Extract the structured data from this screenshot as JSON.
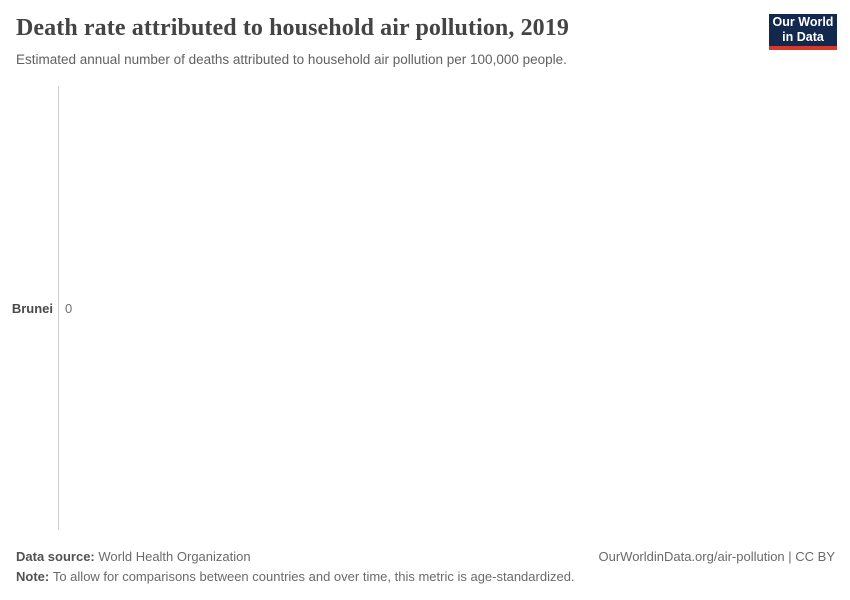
{
  "header": {
    "title": "Death rate attributed to household air pollution, 2019",
    "subtitle": "Estimated annual number of deaths attributed to household air pollution per 100,000 people.",
    "logo": {
      "line1": "Our World",
      "line2": "in Data",
      "background_color": "#12284c",
      "accent_color": "#dc362b"
    }
  },
  "chart_data": {
    "type": "bar",
    "orientation": "horizontal",
    "title": "Death rate attributed to household air pollution, 2019",
    "categories": [
      "Brunei"
    ],
    "values": [
      0
    ],
    "value_labels": [
      "0"
    ],
    "xlabel": "",
    "ylabel": "",
    "xlim": [
      0,
      0
    ],
    "grid": false,
    "legend": false,
    "axis_color": "#d0d0d0"
  },
  "footer": {
    "data_source_label": "Data source:",
    "data_source_text": "World Health Organization",
    "note_label": "Note:",
    "note_text": "To allow for comparisons between countries and over time, this metric is age-standardized.",
    "attribution": "OurWorldinData.org/air-pollution | CC BY"
  }
}
